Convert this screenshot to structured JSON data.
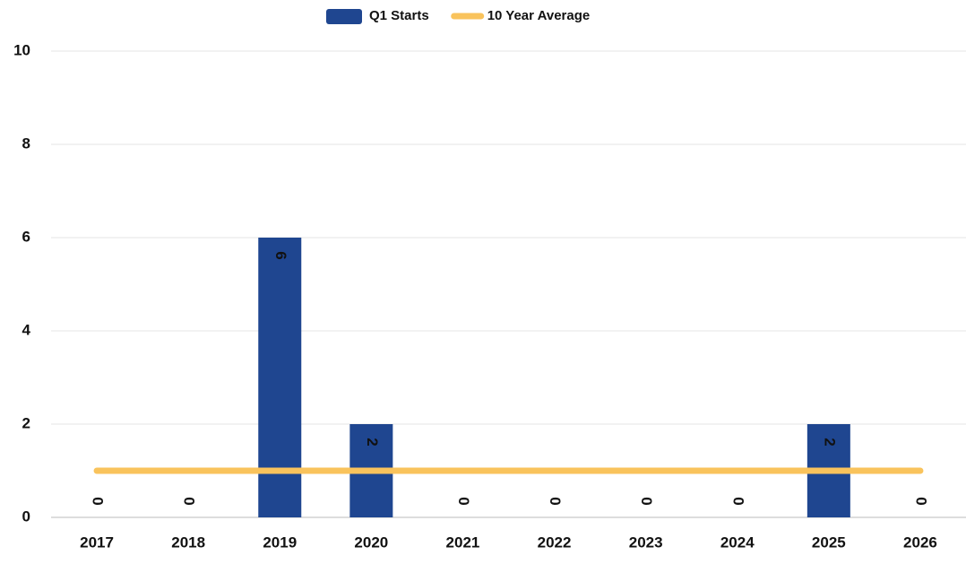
{
  "chart_data": {
    "type": "bar",
    "categories": [
      "2017",
      "2018",
      "2019",
      "2020",
      "2021",
      "2022",
      "2023",
      "2024",
      "2025",
      "2026"
    ],
    "series": [
      {
        "name": "Q1 Starts",
        "type": "bar",
        "color": "#1f4690",
        "values": [
          0,
          0,
          6,
          2,
          0,
          0,
          0,
          0,
          2,
          0
        ]
      },
      {
        "name": "10 Year Average",
        "type": "line",
        "color": "#f9c35c",
        "values": [
          1,
          1,
          1,
          1,
          1,
          1,
          1,
          1,
          1,
          1
        ]
      }
    ],
    "ylim": [
      0,
      10
    ],
    "yticks": [
      0,
      2,
      4,
      6,
      8,
      10
    ],
    "grid": true,
    "legend": "top"
  }
}
